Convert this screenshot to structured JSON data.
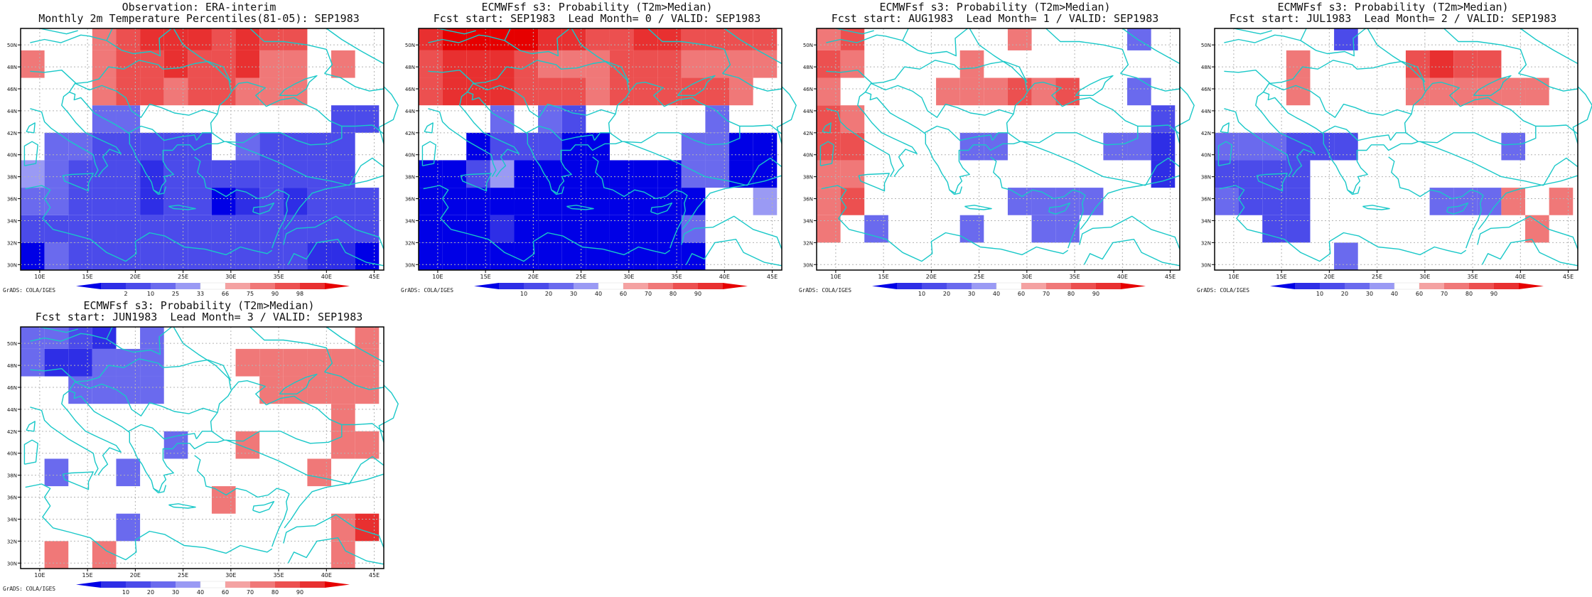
{
  "footer_text": "GrADS: COLA/IGES",
  "lon_ticks": [
    "10E",
    "15E",
    "20E",
    "25E",
    "30E",
    "35E",
    "40E",
    "45E"
  ],
  "lat_ticks": [
    "30N",
    "32N",
    "34N",
    "36N",
    "38N",
    "40N",
    "42N",
    "44N",
    "46N",
    "48N",
    "50N"
  ],
  "colors": {
    "coast": "#19c8c8",
    "grid": "#b4b4b4",
    "blue_scale": [
      "#0000e6",
      "#2e2ee6",
      "#4b4bea",
      "#6a6aee",
      "#9a9af4"
    ],
    "red_scale": [
      "#f4a2a2",
      "#f07878",
      "#ec5050",
      "#e83030",
      "#e60000"
    ]
  },
  "panels": [
    {
      "title_line1": "Observation: ERA-interim",
      "title_line2": "Monthly 2m Temperature Percentiles(81-05): SEP1983",
      "legend_labels": [
        "2",
        "10",
        "25",
        "33",
        "66",
        "75",
        "90",
        "98"
      ]
    },
    {
      "title_line1": "ECMWFsf s3: Probability (T2m>Median)",
      "title_line2": "Fcst start: SEP1983  Lead Month= 0 / VALID: SEP1983",
      "legend_labels": [
        "10",
        "20",
        "30",
        "40",
        "60",
        "70",
        "80",
        "90"
      ]
    },
    {
      "title_line1": "ECMWFsf s3: Probability (T2m>Median)",
      "title_line2": "Fcst start: AUG1983  Lead Month= 1 / VALID: SEP1983",
      "legend_labels": [
        "10",
        "20",
        "30",
        "40",
        "60",
        "70",
        "80",
        "90"
      ]
    },
    {
      "title_line1": "ECMWFsf s3: Probability (T2m>Median)",
      "title_line2": "Fcst start: JUL1983  Lead Month= 2 / VALID: SEP1983",
      "legend_labels": [
        "10",
        "20",
        "30",
        "40",
        "60",
        "70",
        "80",
        "90"
      ]
    },
    {
      "title_line1": "ECMWFsf s3: Probability (T2m>Median)",
      "title_line2": "Fcst start: JUN1983  Lead Month= 3 / VALID: SEP1983",
      "legend_labels": [
        "10",
        "20",
        "30",
        "40",
        "60",
        "70",
        "80",
        "90"
      ]
    }
  ],
  "chart_data": {
    "type": "heatmap",
    "x_range": [
      8,
      46
    ],
    "y_range": [
      29.5,
      51.5
    ],
    "grid_cells": {
      "lon_start": 8,
      "lat_start": 29.5,
      "size_deg": 2.5,
      "cols": 15,
      "rows": 9,
      "row_order": "south_to_north",
      "legend": "1-5 = blue bins (1 darkest), 0 = white, 6-10 = red bins (10 darkest)"
    },
    "panels_values": [
      [
        [
          1,
          4,
          3,
          3,
          3,
          3,
          3,
          3,
          3,
          3,
          3,
          3,
          2,
          2,
          1
        ],
        [
          3,
          3,
          3,
          3,
          3,
          3,
          3,
          3,
          3,
          3,
          3,
          3,
          3,
          3,
          3
        ],
        [
          4,
          4,
          3,
          3,
          3,
          2,
          3,
          3,
          1,
          2,
          3,
          2,
          3,
          3,
          3
        ],
        [
          5,
          4,
          3,
          3,
          3,
          2,
          3,
          3,
          3,
          3,
          3,
          3,
          3,
          3,
          0
        ],
        [
          0,
          4,
          4,
          3,
          3,
          3,
          3,
          3,
          0,
          4,
          3,
          3,
          3,
          3,
          0
        ],
        [
          0,
          0,
          0,
          4,
          4,
          0,
          0,
          0,
          0,
          0,
          0,
          0,
          0,
          3,
          3
        ],
        [
          0,
          0,
          0,
          7,
          8,
          8,
          7,
          8,
          8,
          7,
          7,
          7,
          0,
          0,
          0
        ],
        [
          7,
          0,
          0,
          7,
          8,
          8,
          9,
          8,
          8,
          9,
          7,
          7,
          0,
          7,
          0
        ],
        [
          0,
          0,
          0,
          7,
          8,
          9,
          9,
          9,
          8,
          9,
          8,
          8,
          0,
          0,
          0
        ]
      ],
      [
        [
          1,
          1,
          1,
          1,
          1,
          1,
          1,
          1,
          1,
          1,
          1,
          1,
          0,
          0,
          0
        ],
        [
          1,
          1,
          1,
          2,
          1,
          1,
          1,
          1,
          1,
          1,
          1,
          4,
          0,
          0,
          0
        ],
        [
          1,
          1,
          1,
          1,
          1,
          1,
          1,
          1,
          1,
          1,
          1,
          1,
          0,
          0,
          5
        ],
        [
          1,
          1,
          3,
          5,
          1,
          1,
          1,
          1,
          1,
          1,
          1,
          4,
          4,
          1,
          1
        ],
        [
          0,
          0,
          1,
          3,
          3,
          3,
          1,
          1,
          0,
          0,
          0,
          4,
          4,
          1,
          1
        ],
        [
          0,
          0,
          0,
          4,
          0,
          4,
          3,
          0,
          0,
          0,
          0,
          0,
          4,
          0,
          0
        ],
        [
          8,
          9,
          9,
          9,
          8,
          8,
          8,
          7,
          8,
          8,
          8,
          8,
          8,
          7,
          0
        ],
        [
          8,
          9,
          9,
          9,
          8,
          7,
          7,
          7,
          8,
          8,
          8,
          7,
          7,
          7,
          7
        ],
        [
          9,
          10,
          10,
          10,
          10,
          9,
          9,
          8,
          8,
          9,
          9,
          8,
          8,
          8,
          8
        ]
      ],
      [
        [
          0,
          0,
          0,
          0,
          0,
          0,
          0,
          0,
          0,
          0,
          0,
          0,
          0,
          0,
          0
        ],
        [
          7,
          0,
          4,
          0,
          0,
          0,
          4,
          0,
          0,
          4,
          4,
          0,
          0,
          0,
          0
        ],
        [
          7,
          8,
          0,
          0,
          0,
          0,
          0,
          0,
          4,
          4,
          4,
          4,
          0,
          0,
          0
        ],
        [
          7,
          7,
          0,
          0,
          0,
          0,
          0,
          0,
          0,
          0,
          0,
          0,
          0,
          0,
          2
        ],
        [
          8,
          8,
          0,
          0,
          0,
          0,
          4,
          4,
          0,
          0,
          0,
          0,
          4,
          4,
          2
        ],
        [
          8,
          7,
          0,
          0,
          0,
          0,
          0,
          0,
          0,
          0,
          0,
          0,
          0,
          0,
          3
        ],
        [
          7,
          0,
          0,
          0,
          0,
          7,
          7,
          7,
          8,
          7,
          8,
          0,
          0,
          4,
          0
        ],
        [
          8,
          7,
          0,
          0,
          0,
          0,
          7,
          0,
          0,
          0,
          0,
          0,
          0,
          0,
          0
        ],
        [
          7,
          8,
          0,
          0,
          0,
          0,
          0,
          0,
          7,
          0,
          0,
          0,
          0,
          4,
          0
        ]
      ],
      [
        [
          0,
          0,
          0,
          0,
          0,
          4,
          0,
          0,
          0,
          0,
          0,
          0,
          0,
          0,
          0
        ],
        [
          0,
          0,
          3,
          3,
          0,
          0,
          0,
          0,
          0,
          0,
          0,
          0,
          0,
          7,
          0
        ],
        [
          4,
          3,
          3,
          3,
          0,
          0,
          0,
          0,
          0,
          4,
          4,
          4,
          7,
          0,
          7
        ],
        [
          3,
          3,
          3,
          3,
          0,
          0,
          0,
          0,
          0,
          0,
          0,
          0,
          0,
          0,
          0
        ],
        [
          4,
          4,
          4,
          3,
          3,
          3,
          0,
          0,
          0,
          0,
          0,
          0,
          4,
          0,
          0
        ],
        [
          0,
          0,
          0,
          0,
          0,
          0,
          0,
          0,
          0,
          0,
          0,
          0,
          0,
          0,
          0
        ],
        [
          0,
          0,
          0,
          7,
          0,
          0,
          0,
          0,
          7,
          7,
          7,
          7,
          7,
          7,
          0
        ],
        [
          0,
          0,
          0,
          7,
          0,
          0,
          0,
          0,
          8,
          9,
          8,
          8,
          0,
          0,
          0
        ],
        [
          0,
          0,
          0,
          0,
          0,
          3,
          0,
          0,
          0,
          0,
          0,
          0,
          0,
          0,
          0
        ]
      ],
      [
        [
          0,
          7,
          0,
          7,
          0,
          0,
          0,
          0,
          0,
          0,
          0,
          0,
          0,
          7,
          0
        ],
        [
          0,
          0,
          0,
          0,
          4,
          0,
          0,
          0,
          0,
          0,
          0,
          0,
          0,
          7,
          9
        ],
        [
          0,
          0,
          0,
          0,
          0,
          0,
          0,
          0,
          7,
          0,
          0,
          0,
          0,
          0,
          0
        ],
        [
          0,
          4,
          0,
          0,
          4,
          0,
          0,
          0,
          0,
          0,
          0,
          0,
          7,
          0,
          0
        ],
        [
          0,
          0,
          0,
          0,
          0,
          0,
          4,
          0,
          0,
          7,
          0,
          0,
          0,
          7,
          7
        ],
        [
          0,
          0,
          0,
          0,
          0,
          0,
          0,
          0,
          0,
          0,
          0,
          0,
          0,
          7,
          0
        ],
        [
          0,
          0,
          4,
          4,
          4,
          4,
          0,
          0,
          0,
          0,
          7,
          7,
          7,
          7,
          7
        ],
        [
          4,
          2,
          2,
          4,
          4,
          4,
          0,
          0,
          0,
          7,
          7,
          7,
          7,
          7,
          7
        ],
        [
          4,
          4,
          3,
          2,
          0,
          4,
          0,
          0,
          0,
          0,
          0,
          0,
          0,
          0,
          7
        ]
      ]
    ],
    "legend_labels_obs": [
      "2",
      "10",
      "25",
      "33",
      "66",
      "75",
      "90",
      "98"
    ],
    "legend_labels_prob": [
      "10",
      "20",
      "30",
      "40",
      "60",
      "70",
      "80",
      "90"
    ]
  }
}
